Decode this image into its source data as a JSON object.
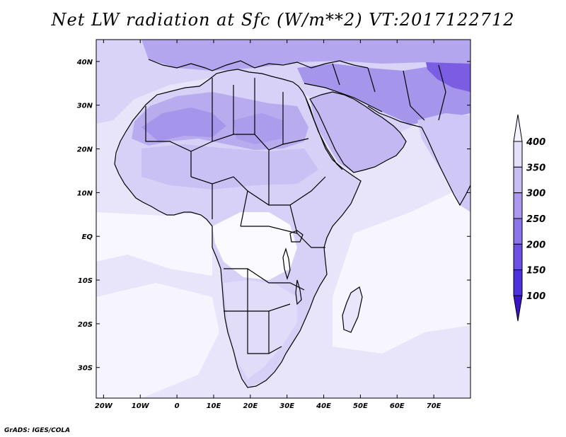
{
  "title": "Net LW radiation at Sfc (W/m**2) VT:2017122712",
  "credit": "GrADS: IGES/COLA",
  "map": {
    "lon_range": [
      -22,
      80
    ],
    "lat_range": [
      -37,
      45
    ],
    "lon_ticks": [
      {
        "value": -20,
        "label": "20W"
      },
      {
        "value": -10,
        "label": "10W"
      },
      {
        "value": 0,
        "label": "0"
      },
      {
        "value": 10,
        "label": "10E"
      },
      {
        "value": 20,
        "label": "20E"
      },
      {
        "value": 30,
        "label": "30E"
      },
      {
        "value": 40,
        "label": "40E"
      },
      {
        "value": 50,
        "label": "50E"
      },
      {
        "value": 60,
        "label": "60E"
      },
      {
        "value": 70,
        "label": "70E"
      }
    ],
    "lat_ticks": [
      {
        "value": 40,
        "label": "40N"
      },
      {
        "value": 30,
        "label": "30N"
      },
      {
        "value": 20,
        "label": "20N"
      },
      {
        "value": 10,
        "label": "10N"
      },
      {
        "value": 0,
        "label": "EQ"
      },
      {
        "value": -10,
        "label": "10S"
      },
      {
        "value": -20,
        "label": "20S"
      },
      {
        "value": -30,
        "label": "30S"
      }
    ]
  },
  "colorbar": {
    "levels": [
      "100",
      "150",
      "200",
      "250",
      "300",
      "350",
      "400"
    ],
    "colors": [
      "#3c14c8",
      "#4b32dc",
      "#6c50e6",
      "#8c74ea",
      "#aa99ee",
      "#c8bef4",
      "#e4dffa",
      "#f4f2fe"
    ],
    "extend": "both"
  },
  "colors": {
    "low_ocean": "#f4f2fe",
    "ocean": "#e7e4fa",
    "land_light": "#d6d0f6",
    "land_mid": "#bdb2f0",
    "land_dark": "#a99bec",
    "tibet": "#7c5ee2",
    "clear": "#ffffff",
    "coast": "#000000"
  }
}
